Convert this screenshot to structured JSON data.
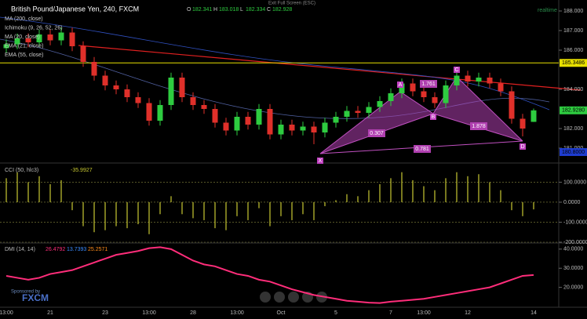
{
  "ui": {
    "exit_fullscreen": "Exit Full Screen (ESC)",
    "realtime": "realtime",
    "sponsored": "Sponsored by",
    "brand": "FXCM"
  },
  "chart_data": [
    {
      "type": "candlestick",
      "title": "British Pound/Japanese Yen, 240, FXCM",
      "last_bar": {
        "labels": [
          "O",
          "H",
          "L",
          "C"
        ],
        "values": [
          182.341,
          183.018,
          182.334,
          182.928
        ]
      },
      "indicators": [
        "MA (200, close)",
        "Ichimoku (9, 26, 52, 26)",
        "MA (20, close)",
        "EMA (21, close)",
        "EMA (55, close)"
      ],
      "categories": [
        "13:00",
        null,
        null,
        null,
        "21",
        null,
        null,
        null,
        null,
        "23",
        null,
        null,
        null,
        "13:00",
        null,
        null,
        null,
        "28",
        null,
        null,
        null,
        "13:00",
        null,
        null,
        null,
        "Oct",
        null,
        null,
        null,
        null,
        "5",
        null,
        null,
        null,
        null,
        "7",
        null,
        null,
        "13:00",
        null,
        null,
        null,
        "12",
        null,
        null,
        null,
        null,
        null,
        "14"
      ],
      "open": [
        186.1,
        186.3,
        186.6,
        186.4,
        186.8,
        186.5,
        186.9,
        186.2,
        185.4,
        184.7,
        184.2,
        184.0,
        183.6,
        183.3,
        182.4,
        183.2,
        184.6,
        183.6,
        183.2,
        183.0,
        182.3,
        181.9,
        182.6,
        182.2,
        183.0,
        181.7,
        182.2,
        181.9,
        182.1,
        181.8,
        182.3,
        182.6,
        182.9,
        182.8,
        183.1,
        183.4,
        183.8,
        184.3,
        183.9,
        183.6,
        183.3,
        184.2,
        184.7,
        184.4,
        184.6,
        184.3,
        183.9,
        182.5,
        182.341
      ],
      "high": [
        186.55,
        186.85,
        186.85,
        187.05,
        187.05,
        187.15,
        187.15,
        186.45,
        185.65,
        184.95,
        184.45,
        184.25,
        183.85,
        183.55,
        183.45,
        184.85,
        184.85,
        183.85,
        183.45,
        183.25,
        182.55,
        182.85,
        182.85,
        183.25,
        183.25,
        182.45,
        182.45,
        182.35,
        182.35,
        182.55,
        182.85,
        183.15,
        183.15,
        183.35,
        183.65,
        184.05,
        184.55,
        184.55,
        184.15,
        183.85,
        184.45,
        184.95,
        184.95,
        184.85,
        184.85,
        184.55,
        184.15,
        182.75,
        183.018
      ],
      "low": [
        185.85,
        186.05,
        186.15,
        186.15,
        186.25,
        186.25,
        185.95,
        185.15,
        184.45,
        183.95,
        183.75,
        183.35,
        183.05,
        182.15,
        182.15,
        182.95,
        183.35,
        182.95,
        182.75,
        182.05,
        181.65,
        181.65,
        181.95,
        181.95,
        181.45,
        181.45,
        181.65,
        181.65,
        181.2,
        181.55,
        182.05,
        182.35,
        182.55,
        182.55,
        182.85,
        183.15,
        183.55,
        183.65,
        183.35,
        183.05,
        183.05,
        183.95,
        184.15,
        184.15,
        184.05,
        183.65,
        182.25,
        181.6,
        182.334
      ],
      "close": [
        186.3,
        186.6,
        186.4,
        186.8,
        186.5,
        186.9,
        186.2,
        185.4,
        184.7,
        184.2,
        184.0,
        183.6,
        183.3,
        182.4,
        183.2,
        184.6,
        183.6,
        183.2,
        183.0,
        182.3,
        181.9,
        182.6,
        182.2,
        183.0,
        181.7,
        182.2,
        181.9,
        182.1,
        181.8,
        182.3,
        182.6,
        182.9,
        182.8,
        183.1,
        183.4,
        183.8,
        184.3,
        183.9,
        183.6,
        183.3,
        184.2,
        184.7,
        184.4,
        184.6,
        184.3,
        183.9,
        182.5,
        182.0,
        182.928
      ],
      "up_color": "#2ecc40",
      "down_color": "#e0302a",
      "ylim": [
        180.28,
        188.56
      ],
      "yticks": [
        {
          "value": 188,
          "label": "188.000"
        },
        {
          "value": 187,
          "label": "187.000"
        },
        {
          "value": 186,
          "label": "186.000"
        },
        {
          "value": 184,
          "label": "184.000"
        },
        {
          "value": 182,
          "label": "182.000"
        },
        {
          "value": 181,
          "label": "181.000"
        }
      ],
      "price_labels": [
        {
          "value": 185.3486,
          "label": "185.3486",
          "color": "#e8e000"
        },
        {
          "value": 182.928,
          "label": "182.9280",
          "color": "#2ecc40"
        },
        {
          "value": 180.8,
          "label": "180.8000",
          "color": "#1e3cd0"
        }
      ],
      "pattern": {
        "points": [
          "X",
          "A",
          "B",
          "C",
          "D"
        ],
        "ratios": [
          0.307,
          1.761,
          1.878,
          0.781
        ]
      }
    },
    {
      "type": "bar",
      "title": "CCI (50, hlc3)",
      "last_value": -35.9927,
      "color": "#c8c832",
      "values": [
        120,
        150,
        100,
        130,
        90,
        110,
        -40,
        -120,
        -150,
        -140,
        -120,
        -130,
        -110,
        -160,
        -60,
        30,
        -60,
        -80,
        -90,
        -130,
        -140,
        -70,
        -90,
        -30,
        -120,
        -70,
        -90,
        -60,
        -90,
        -20,
        10,
        40,
        30,
        60,
        90,
        120,
        150,
        110,
        80,
        60,
        120,
        150,
        130,
        140,
        100,
        60,
        -40,
        -70,
        -35.9927
      ],
      "ylim": [
        -200,
        188
      ],
      "yticks": [
        {
          "value": 100,
          "label": "100.0000"
        },
        {
          "value": 0,
          "label": "0.0000"
        },
        {
          "value": -100,
          "label": "-100.0000"
        },
        {
          "value": -200,
          "label": "-200.0000"
        }
      ]
    },
    {
      "type": "line",
      "title": "DMI (14, 14)",
      "header_values": [
        26.4792,
        13.7393,
        25.2571
      ],
      "header_colors": [
        "#ff2d7a",
        "#3a8cff",
        "#ff8c1a"
      ],
      "color": "#ff2d7a",
      "values": [
        26,
        25,
        24,
        25,
        27,
        28,
        29,
        31,
        33,
        35,
        37,
        38,
        39,
        40.5,
        41,
        40,
        37,
        34,
        32,
        31,
        29,
        27,
        26,
        24,
        23,
        21,
        19,
        17.5,
        16,
        15,
        14,
        13,
        12.5,
        12,
        11.8,
        12.5,
        13,
        13.5,
        14,
        15,
        16,
        17,
        18,
        19,
        20,
        22,
        24,
        26,
        26.4792
      ],
      "ylim": [
        9.6,
        42.8
      ],
      "yticks": [
        {
          "value": 40,
          "label": "40.0000"
        },
        {
          "value": 30,
          "label": "30.0000"
        },
        {
          "value": 20,
          "label": "20.0000"
        }
      ]
    }
  ]
}
